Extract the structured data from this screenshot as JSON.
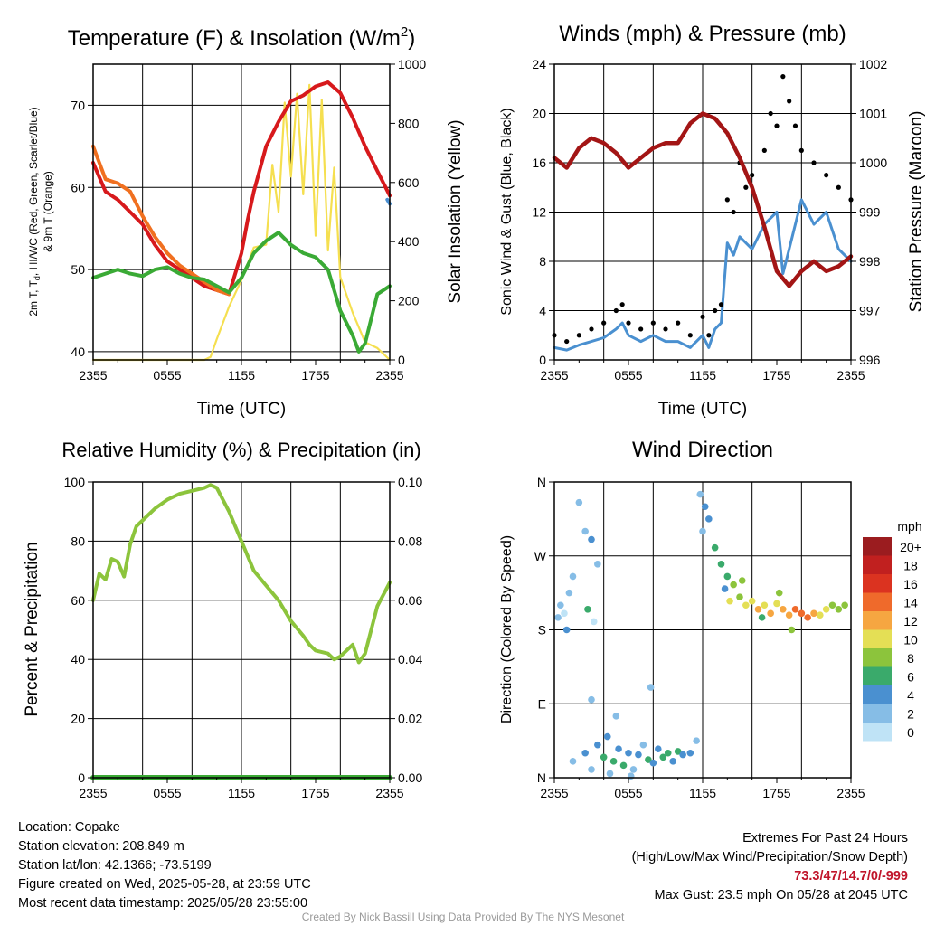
{
  "x_ticks": [
    "2355",
    "0555",
    "1155",
    "1755",
    "2355"
  ],
  "chart_data": [
    {
      "type": "line",
      "title": "Temperature (F) & Insolation (W/m²)",
      "title_text": "Temperature (F) & Insolation (W/m",
      "title_sup": "2",
      "title_close": ")",
      "xlabel": "Time (UTC)",
      "ylabel_line1": "2m T, T",
      "ylabel_sub": "d",
      "ylabel_line1_rest": ", HI/WC (Red, Green, Scarlet/Blue)",
      "ylabel_line2": "& 9m T (Orange)",
      "y2label": "Solar Insolation (Yellow)",
      "x_ticks": [
        "2355",
        "0555",
        "1155",
        "1755",
        "2355"
      ],
      "ylim": [
        39,
        75
      ],
      "yticks": [
        40,
        50,
        60,
        70
      ],
      "y2lim": [
        0,
        1000
      ],
      "y2ticks": [
        0,
        200,
        400,
        600,
        800,
        1000
      ],
      "series": [
        {
          "color": "#d7191c",
          "x": [
            0,
            1,
            2,
            3,
            4,
            5,
            6,
            7,
            8,
            9,
            10,
            11,
            12,
            12.5,
            13,
            14,
            15,
            16,
            17,
            18,
            19,
            20,
            21,
            22,
            23,
            24
          ],
          "y": [
            63,
            59.5,
            58.5,
            57,
            55.5,
            53,
            51,
            50,
            49,
            48,
            47.5,
            47,
            52,
            56,
            59.5,
            65,
            68,
            70.5,
            71.2,
            72.3,
            72.8,
            71.5,
            68.5,
            65,
            62,
            59
          ]
        },
        {
          "color": "#f07020",
          "x": [
            0,
            1,
            2,
            3,
            4,
            5,
            6,
            7,
            8,
            9,
            10,
            11
          ],
          "y": [
            65,
            61,
            60.5,
            59.5,
            56.5,
            54,
            52,
            50.5,
            49.5,
            48.5,
            47.5,
            47
          ]
        },
        {
          "color": "#3aaa35",
          "x": [
            0,
            1,
            2,
            3,
            4,
            5,
            6,
            7,
            8,
            9,
            10,
            11,
            12,
            13,
            14,
            15,
            16,
            17,
            18,
            19,
            20,
            21,
            21.5,
            22,
            23,
            24
          ],
          "y": [
            49,
            49.5,
            50,
            49.5,
            49.2,
            50,
            50.3,
            49.5,
            49,
            48.8,
            48,
            47.2,
            49,
            52,
            53.5,
            54.5,
            53,
            52,
            51.5,
            50,
            45,
            42,
            40,
            41,
            47,
            48
          ]
        },
        {
          "color": "#4a8fd1",
          "x": [
            23.8,
            24
          ],
          "y": [
            58.5,
            58
          ]
        }
      ],
      "insolation": {
        "color": "#f5df50",
        "x": [
          0,
          6,
          9,
          9.5,
          10,
          11,
          12,
          13,
          14,
          14.5,
          15,
          15.5,
          16,
          16.5,
          17,
          17.5,
          18,
          18.5,
          19,
          19.5,
          20,
          21,
          22,
          23,
          24
        ],
        "y": [
          0,
          0,
          0,
          10,
          70,
          180,
          270,
          380,
          390,
          660,
          500,
          870,
          620,
          900,
          560,
          930,
          420,
          880,
          370,
          650,
          280,
          160,
          60,
          40,
          0
        ]
      }
    },
    {
      "type": "scatter",
      "title": "Winds (mph) & Pressure (mb)",
      "xlabel": "Time (UTC)",
      "ylabel": "Sonic Wind & Gust (Blue, Black)",
      "y2label": "Station Pressure (Maroon)",
      "x_ticks": [
        "2355",
        "0555",
        "1155",
        "1755",
        "2355"
      ],
      "ylim": [
        0,
        24
      ],
      "yticks": [
        0,
        4,
        8,
        12,
        16,
        20,
        24
      ],
      "y2lim": [
        996,
        1002
      ],
      "y2ticks": [
        996,
        997,
        998,
        999,
        1000,
        1001,
        1002
      ],
      "wind": {
        "color": "#4a90d0",
        "x": [
          0,
          1,
          2,
          3,
          4,
          5,
          5.5,
          6,
          7,
          8,
          9,
          10,
          11,
          12,
          12.5,
          13,
          13.5,
          14,
          14.5,
          15,
          16,
          17,
          18,
          18.5,
          19,
          20,
          21,
          22,
          23,
          24
        ],
        "y": [
          1,
          0.8,
          1.2,
          1.5,
          1.8,
          2.5,
          3,
          2,
          1.5,
          2,
          1.5,
          1.5,
          1,
          2,
          1,
          2.5,
          3,
          9.5,
          8.5,
          10,
          9,
          11,
          12,
          7,
          9,
          13,
          11,
          12,
          9,
          8
        ]
      },
      "gust": {
        "color": "#000000",
        "x": [
          0,
          1,
          2,
          3,
          4,
          5,
          5.5,
          6,
          7,
          8,
          9,
          10,
          11,
          12,
          12.5,
          13,
          13.5,
          14,
          14.5,
          15,
          15.5,
          16,
          17,
          17.5,
          18,
          18.5,
          19,
          19.5,
          20,
          21,
          22,
          23,
          24
        ],
        "y": [
          2,
          1.5,
          2,
          2.5,
          3,
          4,
          4.5,
          3,
          2.5,
          3,
          2.5,
          3,
          2,
          3.5,
          2,
          4,
          4.5,
          13,
          12,
          16,
          14,
          15,
          17,
          20,
          19,
          23,
          21,
          19,
          17,
          16,
          15,
          14,
          13
        ]
      },
      "pressure": {
        "color": "#a31515",
        "x": [
          0,
          1,
          2,
          3,
          4,
          5,
          6,
          7,
          8,
          9,
          10,
          11,
          12,
          13,
          14,
          15,
          16,
          17,
          18,
          19,
          20,
          21,
          22,
          23,
          24
        ],
        "y": [
          1000.1,
          999.9,
          1000.3,
          1000.5,
          1000.4,
          1000.2,
          999.9,
          1000.1,
          1000.3,
          1000.4,
          1000.4,
          1000.8,
          1001.0,
          1000.9,
          1000.6,
          1000.1,
          999.5,
          998.7,
          997.8,
          997.5,
          997.8,
          998.0,
          997.8,
          997.9,
          998.1
        ]
      }
    },
    {
      "type": "line",
      "title": "Relative Humidity (%) & Precipitation (in)",
      "ylabel": "Percent & Precipitation",
      "x_ticks": [
        "2355",
        "0555",
        "1155",
        "1755",
        "2355"
      ],
      "ylim": [
        0,
        100
      ],
      "yticks": [
        0,
        20,
        40,
        60,
        80,
        100
      ],
      "y2lim": [
        0,
        0.1
      ],
      "y2ticks": [
        "0.00",
        "0.02",
        "0.04",
        "0.06",
        "0.08",
        "0.10"
      ],
      "rh": {
        "color": "#8cc43c",
        "x": [
          0,
          0.5,
          1,
          1.5,
          2,
          2.5,
          3,
          3.5,
          4,
          5,
          6,
          7,
          8,
          9,
          9.5,
          10,
          11,
          12,
          13,
          14,
          15,
          16,
          17,
          17.5,
          18,
          19,
          19.5,
          20,
          21,
          21.5,
          22,
          23,
          24
        ],
        "y": [
          60,
          69,
          67,
          74,
          73,
          68,
          79,
          85,
          87,
          91,
          94,
          96,
          97,
          98,
          99,
          98,
          90,
          80,
          70,
          65,
          60,
          53,
          48,
          45,
          43,
          42,
          40,
          41,
          45,
          39,
          42,
          58,
          66
        ]
      },
      "precip": {
        "color": "#3aaa35",
        "x": [
          0,
          24
        ],
        "y": [
          0,
          0
        ]
      }
    },
    {
      "type": "scatter",
      "title": "Wind Direction",
      "ylabel": "Direction (Colored By Speed)",
      "x_ticks": [
        "2355",
        "0555",
        "1155",
        "1755",
        "2355"
      ],
      "yticks": [
        "N",
        "E",
        "S",
        "W",
        "N"
      ],
      "ylim": [
        0,
        360
      ],
      "colorbar": {
        "title": "mph",
        "labels": [
          "20+",
          "18",
          "16",
          "14",
          "12",
          "10",
          "8",
          "6",
          "4",
          "2",
          "0"
        ],
        "colors": [
          "#9b1c1f",
          "#c1201f",
          "#db3320",
          "#ef6a2b",
          "#f6a641",
          "#e4df55",
          "#8cc43c",
          "#3aaa6b",
          "#4a90d0",
          "#86bde6",
          "#bfe3f6"
        ]
      },
      "points": [
        {
          "x": 0.3,
          "y": 195,
          "s": 1
        },
        {
          "x": 0.5,
          "y": 210,
          "s": 1
        },
        {
          "x": 0.8,
          "y": 200,
          "s": 0
        },
        {
          "x": 1.2,
          "y": 225,
          "s": 1
        },
        {
          "x": 1.5,
          "y": 245,
          "s": 1
        },
        {
          "x": 1.0,
          "y": 180,
          "s": 2
        },
        {
          "x": 2.0,
          "y": 335,
          "s": 1
        },
        {
          "x": 2.5,
          "y": 300,
          "s": 1
        },
        {
          "x": 3.0,
          "y": 290,
          "s": 2
        },
        {
          "x": 3.5,
          "y": 260,
          "s": 1
        },
        {
          "x": 3.2,
          "y": 190,
          "s": 0
        },
        {
          "x": 2.7,
          "y": 205,
          "s": 3
        },
        {
          "x": 1.5,
          "y": 20,
          "s": 1
        },
        {
          "x": 2.5,
          "y": 30,
          "s": 2
        },
        {
          "x": 3.0,
          "y": 10,
          "s": 1
        },
        {
          "x": 3.5,
          "y": 40,
          "s": 2
        },
        {
          "x": 4.0,
          "y": 25,
          "s": 3
        },
        {
          "x": 4.3,
          "y": 50,
          "s": 2
        },
        {
          "x": 4.8,
          "y": 20,
          "s": 3
        },
        {
          "x": 5.2,
          "y": 35,
          "s": 2
        },
        {
          "x": 5.6,
          "y": 15,
          "s": 3
        },
        {
          "x": 6.0,
          "y": 30,
          "s": 2
        },
        {
          "x": 6.4,
          "y": 10,
          "s": 1
        },
        {
          "x": 6.8,
          "y": 28,
          "s": 2
        },
        {
          "x": 7.2,
          "y": 40,
          "s": 1
        },
        {
          "x": 7.6,
          "y": 22,
          "s": 3
        },
        {
          "x": 8.0,
          "y": 18,
          "s": 2
        },
        {
          "x": 8.4,
          "y": 35,
          "s": 2
        },
        {
          "x": 8.8,
          "y": 25,
          "s": 3
        },
        {
          "x": 9.2,
          "y": 30,
          "s": 3
        },
        {
          "x": 9.6,
          "y": 20,
          "s": 2
        },
        {
          "x": 10.0,
          "y": 32,
          "s": 3
        },
        {
          "x": 10.4,
          "y": 28,
          "s": 2
        },
        {
          "x": 5.0,
          "y": 75,
          "s": 1
        },
        {
          "x": 3.0,
          "y": 95,
          "s": 1
        },
        {
          "x": 7.8,
          "y": 110,
          "s": 1
        },
        {
          "x": 4.5,
          "y": 5,
          "s": 1
        },
        {
          "x": 6.2,
          "y": 2,
          "s": 1
        },
        {
          "x": 11.0,
          "y": 30,
          "s": 2
        },
        {
          "x": 11.5,
          "y": 45,
          "s": 1
        },
        {
          "x": 11.8,
          "y": 345,
          "s": 1
        },
        {
          "x": 12.2,
          "y": 330,
          "s": 2
        },
        {
          "x": 12.0,
          "y": 300,
          "s": 1
        },
        {
          "x": 12.5,
          "y": 315,
          "s": 2
        },
        {
          "x": 13.0,
          "y": 280,
          "s": 3
        },
        {
          "x": 13.5,
          "y": 260,
          "s": 3
        },
        {
          "x": 14.0,
          "y": 245,
          "s": 3
        },
        {
          "x": 13.8,
          "y": 230,
          "s": 2
        },
        {
          "x": 14.5,
          "y": 235,
          "s": 4
        },
        {
          "x": 14.2,
          "y": 215,
          "s": 5
        },
        {
          "x": 15.0,
          "y": 220,
          "s": 4
        },
        {
          "x": 15.5,
          "y": 210,
          "s": 5
        },
        {
          "x": 16.0,
          "y": 215,
          "s": 5
        },
        {
          "x": 16.5,
          "y": 205,
          "s": 6
        },
        {
          "x": 17.0,
          "y": 210,
          "s": 5
        },
        {
          "x": 17.5,
          "y": 200,
          "s": 6
        },
        {
          "x": 18.0,
          "y": 212,
          "s": 5
        },
        {
          "x": 18.5,
          "y": 205,
          "s": 6
        },
        {
          "x": 19.0,
          "y": 198,
          "s": 6
        },
        {
          "x": 19.5,
          "y": 205,
          "s": 7
        },
        {
          "x": 20.0,
          "y": 200,
          "s": 7
        },
        {
          "x": 20.5,
          "y": 195,
          "s": 7
        },
        {
          "x": 21.0,
          "y": 200,
          "s": 6
        },
        {
          "x": 21.5,
          "y": 198,
          "s": 5
        },
        {
          "x": 22.0,
          "y": 205,
          "s": 5
        },
        {
          "x": 22.5,
          "y": 210,
          "s": 4
        },
        {
          "x": 23.0,
          "y": 205,
          "s": 4
        },
        {
          "x": 23.5,
          "y": 210,
          "s": 4
        },
        {
          "x": 18.2,
          "y": 225,
          "s": 4
        },
        {
          "x": 16.8,
          "y": 195,
          "s": 3
        },
        {
          "x": 19.2,
          "y": 180,
          "s": 4
        },
        {
          "x": 15.2,
          "y": 240,
          "s": 4
        }
      ]
    }
  ],
  "info": {
    "location": "Location: Copake",
    "elevation": "Station elevation: 208.849 m",
    "latlon": "Station lat/lon: 42.1366; -73.5199",
    "created": "Figure created on Wed, 2025-05-28, at 23:59 UTC",
    "recent": "Most recent data timestamp: 2025/05/28 23:55:00"
  },
  "extremes": {
    "title": "Extremes For Past 24 Hours",
    "subtitle": "(High/Low/Max Wind/Precipitation/Snow Depth)",
    "values": "73.3/47/14.7/0/-999",
    "max_gust": "Max Gust: 23.5 mph On 05/28 at 2045 UTC"
  },
  "credit": "Created By Nick Bassill Using Data Provided By The NYS Mesonet"
}
